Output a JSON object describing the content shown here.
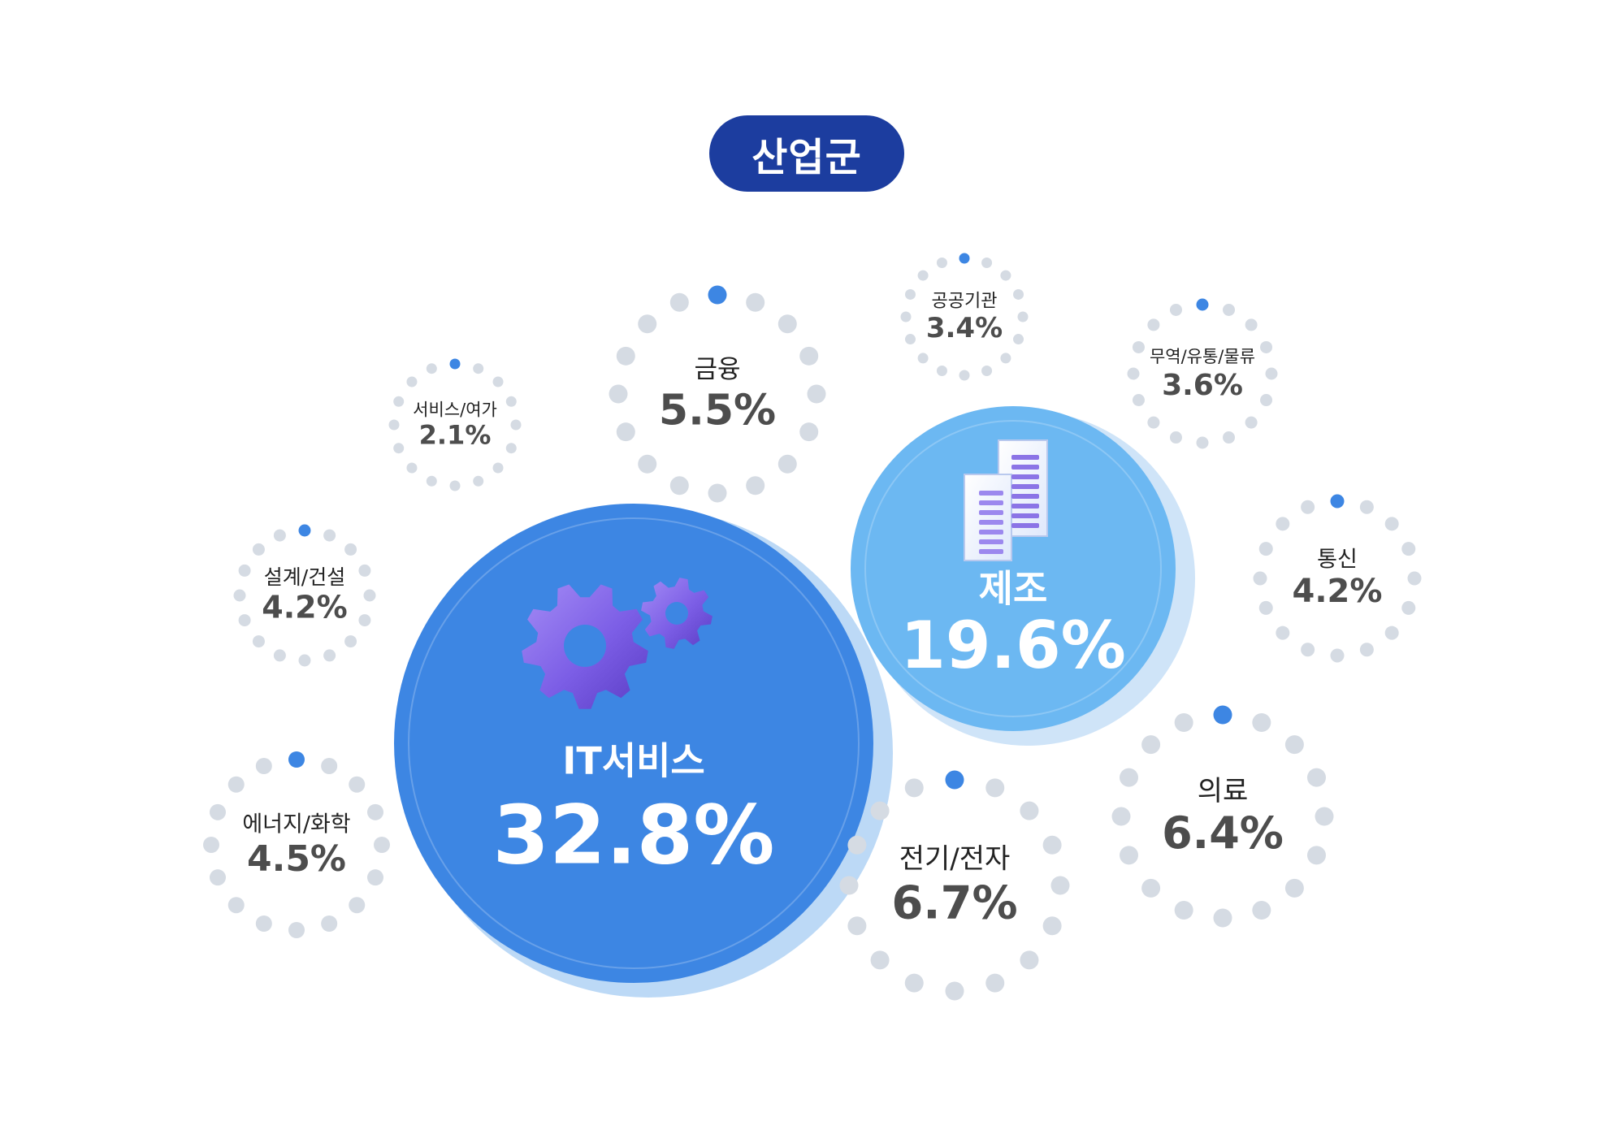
{
  "title": "산업군",
  "colors": {
    "title_bg": "#1c3d9f",
    "big_bubble": "#3d86e3",
    "mid_bubble": "#6cb8f2",
    "dot_gray": "#d5dbe3",
    "dot_accent": "#3d86e3",
    "text_dark": "#4d4d4d"
  },
  "chart_data": {
    "type": "bubble",
    "unit": "%",
    "categories": [
      {
        "name": "IT서비스",
        "value": 32.8,
        "value_label": "32.8%",
        "icon": "gears-icon"
      },
      {
        "name": "제조",
        "value": 19.6,
        "value_label": "19.6%",
        "icon": "buildings-icon"
      },
      {
        "name": "전기/전자",
        "value": 6.7,
        "value_label": "6.7%"
      },
      {
        "name": "의료",
        "value": 6.4,
        "value_label": "6.4%"
      },
      {
        "name": "금융",
        "value": 5.5,
        "value_label": "5.5%"
      },
      {
        "name": "에너지/화학",
        "value": 4.5,
        "value_label": "4.5%"
      },
      {
        "name": "설계/건설",
        "value": 4.2,
        "value_label": "4.2%"
      },
      {
        "name": "통신",
        "value": 4.2,
        "value_label": "4.2%"
      },
      {
        "name": "무역/유통/물류",
        "value": 3.6,
        "value_label": "3.6%"
      },
      {
        "name": "공공기관",
        "value": 3.4,
        "value_label": "3.4%"
      },
      {
        "name": "서비스/여가",
        "value": 2.1,
        "value_label": "2.1%"
      }
    ]
  }
}
